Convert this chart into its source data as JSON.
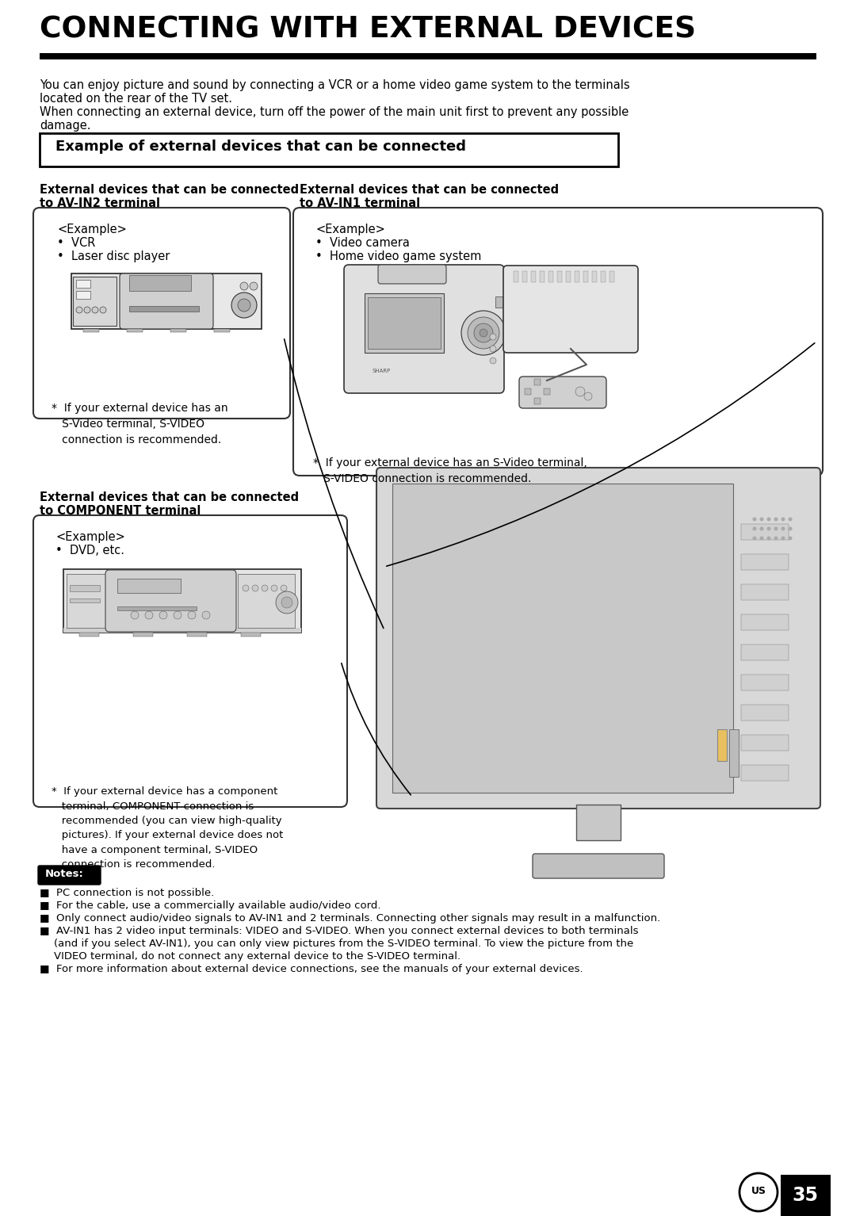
{
  "title": "CONNECTING WITH EXTERNAL DEVICES",
  "intro_line1": "You can enjoy picture and sound by connecting a VCR or a home video game system to the terminals",
  "intro_line2": "located on the rear of the TV set.",
  "intro_line3": "When connecting an external device, turn off the power of the main unit first to prevent any possible",
  "intro_line4": "damage.",
  "section_title": "Example of external devices that can be connected",
  "left_header1": "External devices that can be connected",
  "left_header2": "to AV-IN2 terminal",
  "left_example": "<Example>",
  "left_item1": "•  VCR",
  "left_item2": "•  Laser disc player",
  "left_note": "*  If your external device has an\n   S-Video terminal, S-VIDEO\n   connection is recommended.",
  "right_header1": "External devices that can be connected",
  "right_header2": "to AV-IN1 terminal",
  "right_example": "<Example>",
  "right_item1": "•  Video camera",
  "right_item2": "•  Home video game system",
  "right_note": "*  If your external device has an S-Video terminal,\n   S-VIDEO connection is recommended.",
  "bottom_header1": "External devices that can be connected",
  "bottom_header2": "to COMPONENT terminal",
  "bottom_example": "<Example>",
  "bottom_item1": "•  DVD, etc.",
  "bottom_note": "*  If your external device has a component\n   terminal, COMPONENT connection is\n   recommended (you can view high-quality\n   pictures). If your external device does not\n   have a component terminal, S-VIDEO\n   connection is recommended.",
  "notes_header": "Notes:",
  "note1": "PC connection is not possible.",
  "note2": "For the cable, use a commercially available audio/video cord.",
  "note3": "Only connect audio/video signals to AV-IN1 and 2 terminals. Connecting other signals may result in a malfunction.",
  "note4a": "AV-IN1 has 2 video input terminals: VIDEO and S-VIDEO. When you connect external devices to both terminals",
  "note4b": "(and if you select AV-IN1), you can only view pictures from the S-VIDEO terminal. To view the picture from the",
  "note4c": "VIDEO terminal, do not connect any external device to the S-VIDEO terminal.",
  "note5": "For more information about external device connections, see the manuals of your external devices.",
  "page_num": "35",
  "bg": "#ffffff",
  "fg": "#000000"
}
